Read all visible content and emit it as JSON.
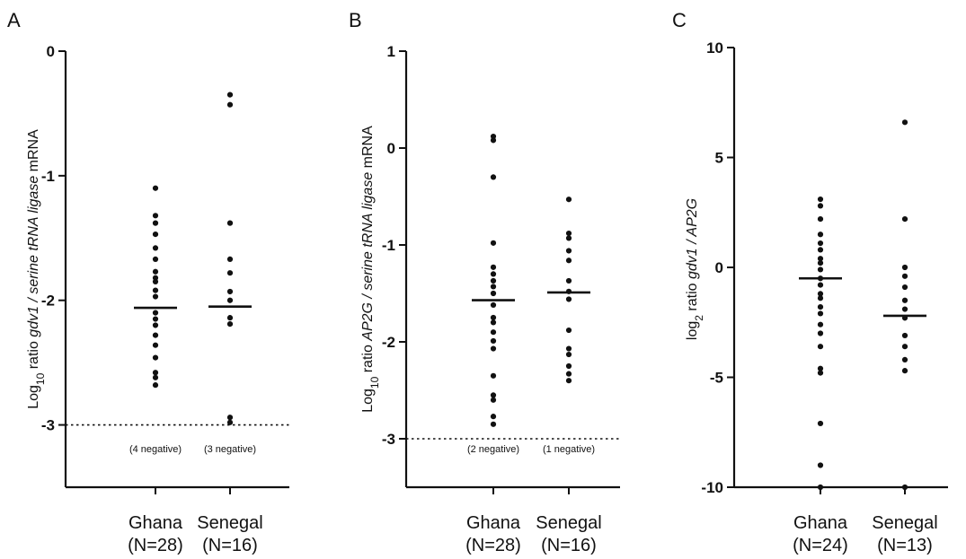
{
  "chart_data": [
    {
      "panel": "A",
      "type": "scatter",
      "ylim": [
        -3.5,
        0
      ],
      "yticks": [
        0,
        -1,
        -2,
        -3
      ],
      "ylabel_parts": [
        {
          "t": "Log"
        },
        {
          "t": "10",
          "sub": true
        },
        {
          "t": " ratio "
        },
        {
          "t": "gdv1 / serine tRNA ligase",
          "italic": true
        },
        {
          "t": " mRNA"
        }
      ],
      "categories": [
        {
          "name": "Ghana",
          "n_label": "(N=28)",
          "note": "(4 negative)"
        },
        {
          "name": "Senegal",
          "n_label": "(N=16)",
          "note": "(3 negative)"
        }
      ],
      "series": [
        {
          "category": "Ghana",
          "median": -2.06,
          "values": [
            -1.1,
            -1.32,
            -1.38,
            -1.47,
            -1.58,
            -1.67,
            -1.77,
            -1.82,
            -1.85,
            -1.92,
            -1.97,
            -2.1,
            -2.15,
            -2.2,
            -2.28,
            -2.36,
            -2.46,
            -2.58,
            -2.62,
            -2.68
          ]
        },
        {
          "category": "Senegal",
          "median": -2.05,
          "values": [
            -0.35,
            -0.43,
            -1.38,
            -1.67,
            -1.78,
            -1.93,
            -2.0,
            -2.14,
            -2.19,
            -2.94,
            -2.98
          ]
        }
      ],
      "reference_line": -3
    },
    {
      "panel": "B",
      "type": "scatter",
      "ylim": [
        -3.5,
        1
      ],
      "yticks": [
        1,
        0,
        -1,
        -2,
        -3
      ],
      "ylabel_parts": [
        {
          "t": "Log"
        },
        {
          "t": "10",
          "sub": true
        },
        {
          "t": " ratio "
        },
        {
          "t": "AP2G / serine tRNA ligase",
          "italic": true
        },
        {
          "t": " mRNA"
        }
      ],
      "categories": [
        {
          "name": "Ghana",
          "n_label": "(N=28)",
          "note": "(2 negative)"
        },
        {
          "name": "Senegal",
          "n_label": "(N=16)",
          "note": "(1 negative)"
        }
      ],
      "series": [
        {
          "category": "Ghana",
          "median": -1.57,
          "values": [
            0.12,
            0.08,
            -0.3,
            -0.98,
            -1.23,
            -1.3,
            -1.37,
            -1.43,
            -1.5,
            -1.62,
            -1.75,
            -1.8,
            -1.9,
            -1.99,
            -2.07,
            -2.35,
            -2.55,
            -2.6,
            -2.77,
            -2.85
          ]
        },
        {
          "category": "Senegal",
          "median": -1.49,
          "values": [
            -0.53,
            -0.88,
            -0.93,
            -1.06,
            -1.16,
            -1.37,
            -1.48,
            -1.56,
            -1.88,
            -2.07,
            -2.13,
            -2.25,
            -2.33,
            -2.4
          ]
        }
      ],
      "reference_line": -3
    },
    {
      "panel": "C",
      "type": "scatter",
      "ylim": [
        -10,
        10
      ],
      "yticks": [
        10,
        5,
        0,
        -5,
        -10
      ],
      "ylabel_parts": [
        {
          "t": "log"
        },
        {
          "t": "2",
          "sub": true
        },
        {
          "t": " ratio "
        },
        {
          "t": "gdv1 / AP2G",
          "italic": true
        }
      ],
      "categories": [
        {
          "name": "Ghana",
          "n_label": "(N=24)",
          "note": ""
        },
        {
          "name": "Senegal",
          "n_label": "(N=13)",
          "note": ""
        }
      ],
      "series": [
        {
          "category": "Ghana",
          "median": -0.5,
          "values": [
            3.1,
            2.8,
            2.2,
            1.5,
            1.1,
            0.8,
            0.4,
            0.2,
            -0.1,
            -0.5,
            -0.8,
            -1.2,
            -1.4,
            -1.8,
            -2.1,
            -2.6,
            -3.0,
            -3.6,
            -4.6,
            -4.8,
            -7.1,
            -9.0,
            -10.0
          ]
        },
        {
          "category": "Senegal",
          "median": -2.2,
          "values": [
            6.6,
            2.2,
            0.0,
            -0.4,
            -0.9,
            -1.5,
            -1.9,
            -2.3,
            -3.1,
            -3.6,
            -4.2,
            -4.7,
            -10.0
          ]
        }
      ],
      "reference_line": null
    }
  ]
}
